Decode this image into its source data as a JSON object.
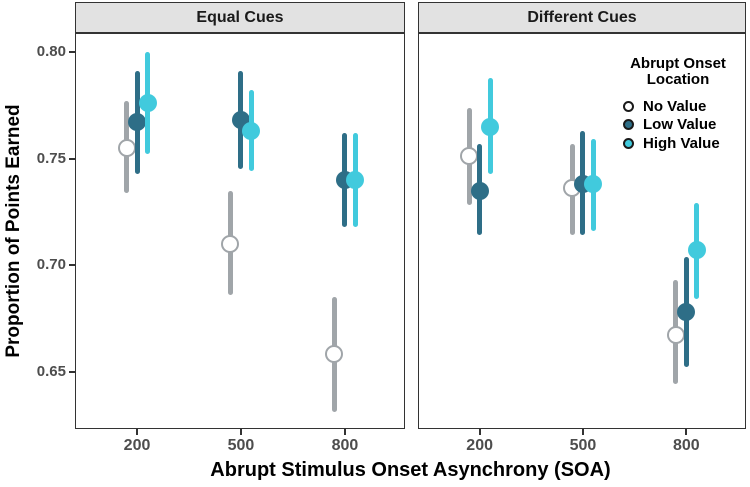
{
  "figure": {
    "y_axis": {
      "tick_labels": [
        "0.80",
        "0.75",
        "0.70",
        "0.65"
      ]
    },
    "legend": {
      "title_line1": "Abrupt Onset",
      "title_line2": "Location",
      "items": [
        {
          "label": "No Value",
          "swatch_fill": "#FFFFFF",
          "swatch_stroke": "#1A1A1A"
        },
        {
          "label": "Low Value",
          "swatch_fill": "#2E6E87",
          "swatch_stroke": "#1A1A1A"
        },
        {
          "label": "High Value",
          "swatch_fill": "#41CADD",
          "swatch_stroke": "#1A1A1A"
        }
      ]
    }
  },
  "colors": {
    "axis_text": "#4D4D4D",
    "axis_title": "#000000",
    "strip_fill": "#E2E2E2",
    "panel_border": "#333333",
    "no_value_gray": "#A0A5A9",
    "low_value_teal": "#2E6E87",
    "high_value_cyan": "#41CADD"
  },
  "chart_data": {
    "type": "scatter",
    "subtype": "pointrange (mean with CI), dodged by condition, two facets",
    "title": "",
    "xlabel": "Abrupt Stimulus Onset Asynchrony (SOA)",
    "ylabel": "Proportion of Points Earned",
    "ylim": [
      0.623,
      0.809
    ],
    "y_ticks": [
      0.8,
      0.75,
      0.7,
      0.65
    ],
    "x_tick_values": [
      200,
      500,
      800
    ],
    "grid": "off",
    "legend_position": "inside-top-right-of-right-panel",
    "facets": [
      {
        "label": "Equal Cues",
        "x": [
          200,
          500,
          800
        ],
        "series": [
          {
            "name": "No Value",
            "fill": "#FFFFFF",
            "stroke": "#A0A5A9",
            "means": [
              0.755,
              0.71,
              0.658
            ],
            "ci_low": [
              0.734,
              0.686,
              0.631
            ],
            "ci_high": [
              0.777,
              0.735,
              0.685
            ]
          },
          {
            "name": "Low Value",
            "fill": "#2E6E87",
            "stroke": "#2E6E87",
            "means": [
              0.767,
              0.768,
              0.74
            ],
            "ci_low": [
              0.743,
              0.745,
              0.718
            ],
            "ci_high": [
              0.791,
              0.791,
              0.762
            ]
          },
          {
            "name": "High Value",
            "fill": "#41CADD",
            "stroke": "#41CADD",
            "means": [
              0.776,
              0.763,
              0.74
            ],
            "ci_low": [
              0.752,
              0.744,
              0.718
            ],
            "ci_high": [
              0.8,
              0.782,
              0.762
            ]
          }
        ]
      },
      {
        "label": "Different Cues",
        "x": [
          200,
          500,
          800
        ],
        "series": [
          {
            "name": "No Value",
            "fill": "#FFFFFF",
            "stroke": "#A0A5A9",
            "means": [
              0.751,
              0.736,
              0.667
            ],
            "ci_low": [
              0.728,
              0.714,
              0.644
            ],
            "ci_high": [
              0.774,
              0.757,
              0.693
            ]
          },
          {
            "name": "Low Value",
            "fill": "#2E6E87",
            "stroke": "#2E6E87",
            "means": [
              0.735,
              0.738,
              0.678
            ],
            "ci_low": [
              0.714,
              0.714,
              0.652
            ],
            "ci_high": [
              0.757,
              0.763,
              0.704
            ]
          },
          {
            "name": "High Value",
            "fill": "#41CADD",
            "stroke": "#41CADD",
            "means": [
              0.765,
              0.738,
              0.707
            ],
            "ci_low": [
              0.743,
              0.716,
              0.684
            ],
            "ci_high": [
              0.788,
              0.759,
              0.729
            ]
          }
        ]
      }
    ]
  }
}
